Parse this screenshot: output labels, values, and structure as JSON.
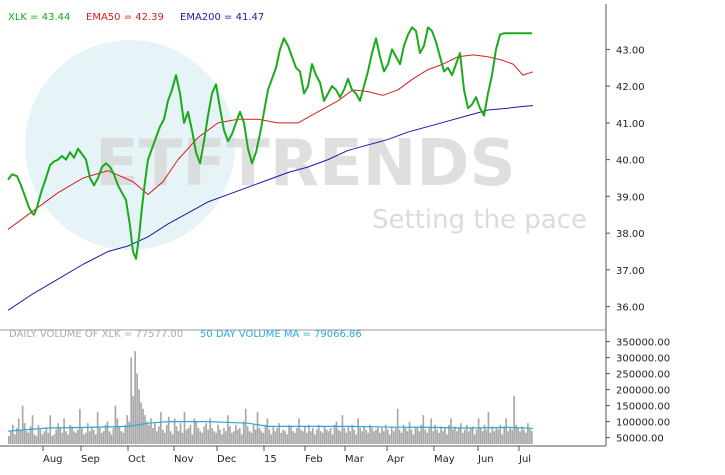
{
  "legend": {
    "price_label": "XLK = 43.44",
    "ema50_label": "EMA50 = 42.39",
    "ema200_label": "EMA200 = 41.47",
    "volume_label": "DAILY VOLUME OF XLK = 77577.00",
    "volume_ma_label": "50 DAY VOLUME MA = 79066.86"
  },
  "watermark": {
    "brand": "ETFTRENDS",
    "tagline": "Setting the pace"
  },
  "colors": {
    "price": "#1aaa1a",
    "ema50": "#d42020",
    "ema200": "#1a1aa8",
    "volume_bar": "#a8a8a8",
    "volume_ma": "#2ca8d8",
    "watermark": "#d8d8d8",
    "watermark_circle": "#dff0f4"
  },
  "chart_data": [
    {
      "type": "line",
      "title": "",
      "x_tick_labels": [
        "Aug",
        "Sep",
        "Oct",
        "Nov",
        "Dec",
        "15",
        "Feb",
        "Mar",
        "Apr",
        "May",
        "Jun",
        "Jul"
      ],
      "y_tick_labels": [
        "36.00",
        "37.00",
        "38.00",
        "39.00",
        "40.00",
        "41.00",
        "42.00",
        "43.00"
      ],
      "ylim": [
        35.5,
        43.8
      ],
      "grid": false,
      "x_domain": [
        0,
        525
      ],
      "x_tick_positions": [
        35,
        73,
        120,
        166,
        209,
        256,
        297,
        337,
        379,
        426,
        470,
        511
      ],
      "series": [
        {
          "name": "XLK",
          "x": [
            0,
            4,
            9,
            13,
            17,
            21,
            24,
            26,
            29,
            33,
            38,
            42,
            46,
            50,
            54,
            58,
            62,
            66,
            70,
            74,
            78,
            82,
            86,
            90,
            94,
            98,
            102,
            106,
            110,
            114,
            118,
            122,
            125,
            128,
            131,
            134,
            137,
            140,
            144,
            148,
            152,
            156,
            160,
            164,
            168,
            172,
            176,
            180,
            184,
            188,
            192,
            196,
            200,
            204,
            208,
            212,
            216,
            220,
            224,
            228,
            232,
            236,
            240,
            244,
            248,
            252,
            256,
            260,
            264,
            268,
            272,
            276,
            280,
            284,
            288,
            292,
            296,
            300,
            304,
            308,
            312,
            316,
            320,
            324,
            328,
            332,
            336,
            340,
            344,
            348,
            352,
            356,
            360,
            364,
            368,
            372,
            376,
            380,
            384,
            388,
            392,
            396,
            400,
            404,
            408,
            412,
            416,
            420,
            424,
            428,
            432,
            436,
            440,
            444,
            448,
            452,
            456,
            460,
            464,
            468,
            472,
            476,
            480,
            484,
            488,
            492,
            496,
            500,
            504,
            508,
            512,
            516,
            520,
            524
          ],
          "values": [
            39.45,
            39.6,
            39.55,
            39.3,
            39.0,
            38.7,
            38.55,
            38.5,
            38.7,
            39.1,
            39.5,
            39.85,
            39.95,
            40.0,
            40.1,
            40.0,
            40.2,
            40.05,
            40.3,
            40.15,
            40.0,
            39.5,
            39.3,
            39.5,
            39.8,
            39.9,
            39.8,
            39.6,
            39.3,
            39.1,
            38.9,
            38.2,
            37.5,
            37.3,
            37.9,
            38.7,
            39.4,
            40.0,
            40.3,
            40.6,
            40.9,
            41.1,
            41.6,
            41.9,
            42.3,
            41.8,
            41.0,
            41.3,
            40.8,
            40.2,
            39.9,
            40.5,
            41.2,
            41.8,
            42.05,
            41.4,
            40.8,
            40.5,
            40.7,
            41.0,
            41.3,
            41.0,
            40.3,
            39.9,
            40.2,
            40.7,
            41.3,
            41.9,
            42.2,
            42.5,
            43.0,
            43.3,
            43.1,
            42.8,
            42.5,
            42.4,
            41.8,
            42.0,
            42.6,
            42.3,
            42.1,
            41.6,
            41.8,
            42.0,
            41.9,
            41.7,
            41.9,
            42.2,
            41.9,
            41.8,
            41.6,
            42.0,
            42.4,
            42.9,
            43.3,
            42.8,
            42.4,
            42.6,
            43.0,
            42.8,
            42.6,
            43.1,
            43.4,
            43.6,
            43.5,
            42.9,
            43.1,
            43.6,
            43.5,
            43.2,
            42.8,
            42.4,
            42.5,
            42.3,
            42.6,
            42.9,
            41.9,
            41.4,
            41.5,
            41.7,
            41.4,
            41.2,
            41.8,
            42.3,
            43.0,
            43.4,
            43.44,
            43.44,
            43.44,
            43.44,
            43.44,
            43.44,
            43.44,
            43.44
          ],
          "note": ""
        },
        {
          "name": "EMA50",
          "x": [
            0,
            25,
            50,
            75,
            100,
            125,
            140,
            155,
            170,
            190,
            210,
            230,
            250,
            270,
            290,
            310,
            330,
            345,
            360,
            375,
            390,
            405,
            420,
            435,
            450,
            465,
            480,
            495,
            505,
            515,
            525
          ],
          "values": [
            38.1,
            38.6,
            39.1,
            39.5,
            39.7,
            39.4,
            39.05,
            39.4,
            40.0,
            40.6,
            41.0,
            41.1,
            41.1,
            41.0,
            41.0,
            41.3,
            41.6,
            41.9,
            41.85,
            41.75,
            41.9,
            42.2,
            42.45,
            42.6,
            42.8,
            42.85,
            42.8,
            42.7,
            42.6,
            42.3,
            42.39
          ]
        },
        {
          "name": "EMA200",
          "x": [
            0,
            25,
            50,
            75,
            100,
            120,
            140,
            160,
            180,
            200,
            220,
            240,
            260,
            280,
            300,
            320,
            340,
            360,
            380,
            400,
            420,
            440,
            460,
            480,
            500,
            515,
            525
          ],
          "values": [
            35.9,
            36.35,
            36.75,
            37.15,
            37.5,
            37.65,
            37.9,
            38.25,
            38.55,
            38.85,
            39.05,
            39.25,
            39.45,
            39.65,
            39.8,
            40.0,
            40.25,
            40.4,
            40.55,
            40.75,
            40.9,
            41.05,
            41.2,
            41.35,
            41.4,
            41.45,
            41.47
          ]
        }
      ]
    },
    {
      "type": "bar",
      "title": "",
      "y_tick_labels": [
        "50000.00",
        "100000.00",
        "150000.00",
        "200000.00",
        "250000.00",
        "300000.00",
        "350000.00"
      ],
      "ylim": [
        30000,
        355000
      ],
      "x_domain": [
        0,
        525
      ],
      "series": [
        {
          "name": "DAILY VOLUME OF XLK",
          "values": [
            55000,
            70000,
            90000,
            60000,
            80000,
            110000,
            75000,
            150000,
            95000,
            70000,
            65000,
            85000,
            120000,
            60000,
            55000,
            90000,
            75000,
            60000,
            70000,
            80000,
            65000,
            120000,
            55000,
            60000,
            75000,
            95000,
            80000,
            65000,
            110000,
            70000,
            60000,
            90000,
            85000,
            70000,
            65000,
            75000,
            140000,
            80000,
            60000,
            65000,
            95000,
            70000,
            85000,
            75000,
            60000,
            130000,
            80000,
            65000,
            70000,
            90000,
            100000,
            70000,
            60000,
            80000,
            150000,
            110000,
            85000,
            70000,
            65000,
            90000,
            120000,
            100000,
            300000,
            180000,
            320000,
            250000,
            200000,
            160000,
            140000,
            120000,
            100000,
            90000,
            110000,
            80000,
            95000,
            70000,
            85000,
            130000,
            75000,
            65000,
            90000,
            115000,
            70000,
            60000,
            110000,
            85000,
            70000,
            95000,
            65000,
            130000,
            75000,
            80000,
            90000,
            60000,
            110000,
            100000,
            80000,
            70000,
            65000,
            85000,
            95000,
            75000,
            110000,
            80000,
            70000,
            65000,
            90000,
            75000,
            60000,
            80000,
            70000,
            120000,
            85000,
            65000,
            70000,
            90000,
            75000,
            80000,
            60000,
            100000,
            140000,
            85000,
            70000,
            65000,
            90000,
            75000,
            130000,
            80000,
            70000,
            65000,
            90000,
            110000,
            75000,
            60000,
            85000,
            70000,
            80000,
            95000,
            65000,
            75000,
            70000,
            60000,
            90000,
            85000,
            70000,
            65000,
            80000,
            110000,
            75000,
            70000,
            85000,
            65000,
            90000,
            70000,
            80000,
            60000,
            75000,
            90000,
            70000,
            65000,
            85000,
            75000,
            70000,
            80000,
            60000,
            90000,
            100000,
            75000,
            70000,
            120000,
            80000,
            65000,
            85000,
            70000,
            90000,
            75000,
            60000,
            110000,
            80000,
            70000,
            85000,
            75000,
            65000,
            90000,
            80000,
            70000,
            75000,
            85000,
            65000,
            80000,
            70000,
            90000,
            75000,
            60000,
            85000,
            70000,
            80000,
            140000,
            75000,
            65000,
            90000,
            80000,
            70000,
            100000,
            75000,
            60000,
            85000,
            80000,
            70000,
            90000,
            120000,
            75000,
            65000,
            80000,
            110000,
            70000,
            90000,
            75000,
            65000,
            85000,
            70000,
            80000,
            60000,
            90000,
            110000,
            75000,
            85000,
            70000,
            80000,
            95000,
            65000,
            75000,
            90000,
            70000,
            80000,
            85000,
            60000,
            75000,
            110000,
            80000,
            70000,
            90000,
            75000,
            130000,
            65000,
            85000,
            70000,
            80000,
            75000,
            90000,
            60000,
            85000,
            110000,
            70000,
            80000,
            75000,
            180000,
            90000,
            80000,
            70000,
            85000,
            75000,
            65000,
            95000,
            80000,
            70000
          ],
          "note": ""
        },
        {
          "name": "50 DAY VOLUME MA",
          "x": [
            0,
            40,
            80,
            120,
            140,
            160,
            200,
            240,
            260,
            300,
            340,
            380,
            420,
            460,
            500,
            525
          ],
          "values": [
            70000,
            80000,
            82000,
            85000,
            95000,
            100000,
            100000,
            95000,
            85000,
            85000,
            85000,
            83000,
            82000,
            80000,
            82000,
            79066.86
          ]
        }
      ]
    }
  ]
}
